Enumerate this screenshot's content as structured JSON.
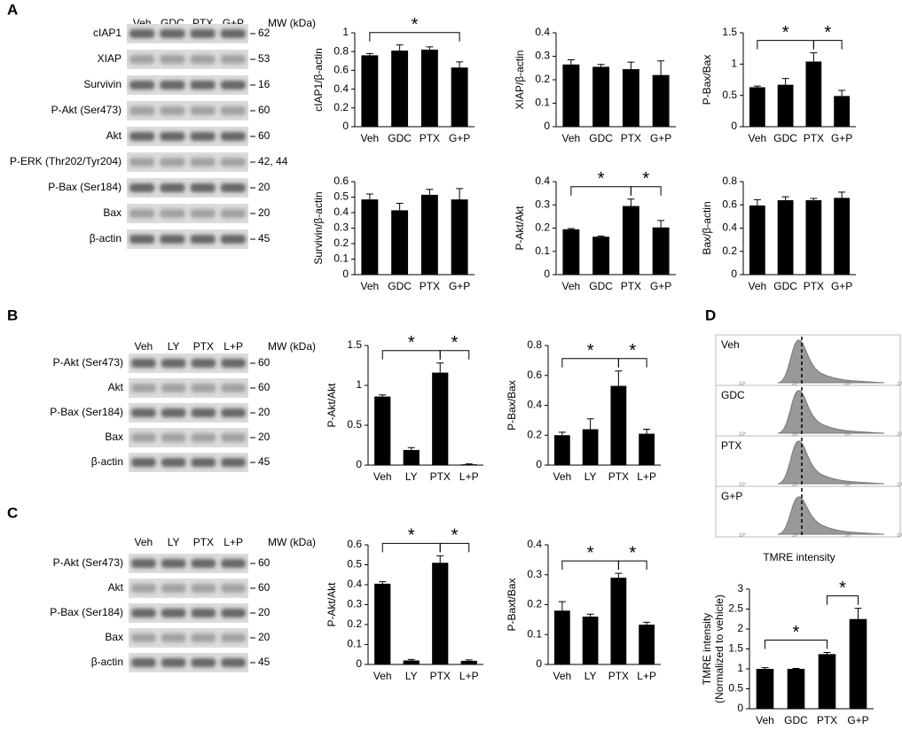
{
  "panel_labels": [
    "A",
    "B",
    "C",
    "D"
  ],
  "blots": [
    {
      "lanes": [
        "Veh",
        "GDC",
        "PTX",
        "G+P"
      ],
      "mw_header": "MW (kDa)",
      "rows": [
        {
          "name": "cIAP1",
          "mw": "62"
        },
        {
          "name": "XIAP",
          "mw": "53"
        },
        {
          "name": "Survivin",
          "mw": "16"
        },
        {
          "name": "P-Akt (Ser473)",
          "mw": "60"
        },
        {
          "name": "Akt",
          "mw": "60"
        },
        {
          "name": "P-ERK (Thr202/Tyr204)",
          "mw": "42, 44"
        },
        {
          "name": "P-Bax (Ser184)",
          "mw": "20"
        },
        {
          "name": "Bax",
          "mw": "20"
        },
        {
          "name": "β-actin",
          "mw": "45"
        }
      ]
    },
    {
      "lanes": [
        "Veh",
        "LY",
        "PTX",
        "L+P"
      ],
      "mw_header": "MW (kDa)",
      "rows": [
        {
          "name": "P-Akt (Ser473)",
          "mw": "60"
        },
        {
          "name": "Akt",
          "mw": "60"
        },
        {
          "name": "P-Bax (Ser184)",
          "mw": "20"
        },
        {
          "name": "Bax",
          "mw": "20"
        },
        {
          "name": "β-actin",
          "mw": "45"
        }
      ]
    },
    {
      "lanes": [
        "Veh",
        "LY",
        "PTX",
        "L+P"
      ],
      "mw_header": "MW (kDa)",
      "rows": [
        {
          "name": "P-Akt (Ser473)",
          "mw": "60"
        },
        {
          "name": "Akt",
          "mw": "60"
        },
        {
          "name": "P-Bax (Ser184)",
          "mw": "20"
        },
        {
          "name": "Bax",
          "mw": "20"
        },
        {
          "name": "β-actin",
          "mw": "45"
        }
      ]
    }
  ],
  "histogram": {
    "groups": [
      "Veh",
      "GDC",
      "PTX",
      "G+P"
    ],
    "xtick_labels": [
      "10⁰",
      "10¹",
      "10²",
      "10³"
    ],
    "xlabel": "TMRE intensity"
  },
  "chart_data": [
    {
      "type": "bar",
      "ylabel": [
        "cIAP1/β-actin"
      ],
      "categories": [
        "Veh",
        "GDC",
        "PTX",
        "G+P"
      ],
      "values": [
        0.76,
        0.81,
        0.82,
        0.63
      ],
      "errors": [
        0.02,
        0.06,
        0.03,
        0.06
      ],
      "ylim": [
        0,
        1
      ],
      "yticks": [
        0,
        0.2,
        0.4,
        0.6,
        0.8,
        1
      ],
      "color": "#000000",
      "significance": [
        {
          "from": 0,
          "to": 3,
          "label": "*"
        }
      ]
    },
    {
      "type": "bar",
      "ylabel": [
        "XIAP/β-actin"
      ],
      "categories": [
        "Veh",
        "GDC",
        "PTX",
        "G+P"
      ],
      "values": [
        0.265,
        0.255,
        0.245,
        0.22
      ],
      "errors": [
        0.02,
        0.01,
        0.03,
        0.06
      ],
      "ylim": [
        0,
        0.4
      ],
      "yticks": [
        0,
        0.1,
        0.2,
        0.3,
        0.4
      ],
      "color": "#000000",
      "significance": []
    },
    {
      "type": "bar",
      "ylabel": [
        "P-Bax/Bax"
      ],
      "categories": [
        "Veh",
        "GDC",
        "PTX",
        "G+P"
      ],
      "values": [
        0.63,
        0.67,
        1.04,
        0.49
      ],
      "errors": [
        0.02,
        0.1,
        0.14,
        0.09
      ],
      "ylim": [
        0,
        1.5
      ],
      "yticks": [
        0,
        0.5,
        1,
        1.5
      ],
      "color": "#000000",
      "significance": [
        {
          "from": 0,
          "to": 2,
          "label": "*"
        },
        {
          "from": 2,
          "to": 3,
          "label": "*"
        }
      ]
    },
    {
      "type": "bar",
      "ylabel": [
        "Survivin/β-actin"
      ],
      "categories": [
        "Veh",
        "GDC",
        "PTX",
        "G+P"
      ],
      "values": [
        0.485,
        0.415,
        0.515,
        0.485
      ],
      "errors": [
        0.035,
        0.045,
        0.035,
        0.07
      ],
      "ylim": [
        0,
        0.6
      ],
      "yticks": [
        0,
        0.1,
        0.2,
        0.3,
        0.4,
        0.5,
        0.6
      ],
      "color": "#000000",
      "significance": []
    },
    {
      "type": "bar",
      "ylabel": [
        "P-Akt/Akt"
      ],
      "categories": [
        "Veh",
        "GDC",
        "PTX",
        "G+P"
      ],
      "values": [
        0.195,
        0.163,
        0.295,
        0.203
      ],
      "errors": [
        0.003,
        0.003,
        0.03,
        0.03
      ],
      "ylim": [
        0,
        0.4
      ],
      "yticks": [
        0,
        0.1,
        0.2,
        0.3,
        0.4
      ],
      "color": "#000000",
      "significance": [
        {
          "from": 0,
          "to": 2,
          "label": "*"
        },
        {
          "from": 2,
          "to": 3,
          "label": "*"
        }
      ]
    },
    {
      "type": "bar",
      "ylabel": [
        "Bax/β-actin"
      ],
      "categories": [
        "Veh",
        "GDC",
        "PTX",
        "G+P"
      ],
      "values": [
        0.595,
        0.64,
        0.64,
        0.66
      ],
      "errors": [
        0.05,
        0.03,
        0.015,
        0.05
      ],
      "ylim": [
        0,
        0.8
      ],
      "yticks": [
        0,
        0.2,
        0.4,
        0.6,
        0.8
      ],
      "color": "#000000",
      "significance": []
    },
    {
      "type": "bar",
      "ylabel": [
        "P-Akt/Akt"
      ],
      "categories": [
        "Veh",
        "LY",
        "PTX",
        "L+P"
      ],
      "values": [
        0.86,
        0.19,
        1.16,
        0.01
      ],
      "errors": [
        0.02,
        0.03,
        0.12,
        0.005
      ],
      "ylim": [
        0,
        1.5
      ],
      "yticks": [
        0,
        0.5,
        1,
        1.5
      ],
      "color": "#000000",
      "significance": [
        {
          "from": 0,
          "to": 2,
          "label": "*"
        },
        {
          "from": 2,
          "to": 3,
          "label": "*"
        }
      ]
    },
    {
      "type": "bar",
      "ylabel": [
        "P-Bax/Bax"
      ],
      "categories": [
        "Veh",
        "LY",
        "PTX",
        "L+P"
      ],
      "values": [
        0.2,
        0.24,
        0.53,
        0.21
      ],
      "errors": [
        0.02,
        0.07,
        0.1,
        0.03
      ],
      "ylim": [
        0,
        0.8
      ],
      "yticks": [
        0,
        0.2,
        0.4,
        0.6,
        0.8
      ],
      "color": "#000000",
      "significance": [
        {
          "from": 0,
          "to": 2,
          "label": "*"
        },
        {
          "from": 2,
          "to": 3,
          "label": "*"
        }
      ]
    },
    {
      "type": "bar",
      "ylabel": [
        "P-Akt/Akt"
      ],
      "categories": [
        "Veh",
        "LY",
        "PTX",
        "L+P"
      ],
      "values": [
        0.405,
        0.02,
        0.51,
        0.018
      ],
      "errors": [
        0.01,
        0.005,
        0.035,
        0.005
      ],
      "ylim": [
        0,
        0.6
      ],
      "yticks": [
        0,
        0.1,
        0.2,
        0.3,
        0.4,
        0.5,
        0.6
      ],
      "color": "#000000",
      "significance": [
        {
          "from": 0,
          "to": 2,
          "label": "*"
        },
        {
          "from": 2,
          "to": 3,
          "label": "*"
        }
      ]
    },
    {
      "type": "bar",
      "ylabel": [
        "P-Baxt/Bax"
      ],
      "categories": [
        "Veh",
        "LY",
        "PTX",
        "L+P"
      ],
      "values": [
        0.18,
        0.16,
        0.29,
        0.133
      ],
      "errors": [
        0.03,
        0.008,
        0.015,
        0.008
      ],
      "ylim": [
        0,
        0.4
      ],
      "yticks": [
        0,
        0.1,
        0.2,
        0.3,
        0.4
      ],
      "color": "#000000",
      "significance": [
        {
          "from": 0,
          "to": 2,
          "label": "*"
        },
        {
          "from": 2,
          "to": 3,
          "label": "*"
        }
      ]
    },
    {
      "type": "bar",
      "ylabel": [
        "TMRE intensity",
        "(Normalized to vehicle)"
      ],
      "categories": [
        "Veh",
        "GDC",
        "PTX",
        "G+P"
      ],
      "values": [
        1.0,
        1.0,
        1.37,
        2.25
      ],
      "errors": [
        0.03,
        0.01,
        0.04,
        0.27
      ],
      "ylim": [
        0,
        3
      ],
      "yticks": [
        0,
        0.5,
        1,
        1.5,
        2,
        2.5,
        3
      ],
      "color": "#000000",
      "significance": [
        {
          "from": 0,
          "to": 2,
          "label": "*"
        },
        {
          "from": 2,
          "to": 3,
          "label": "*"
        }
      ]
    }
  ]
}
